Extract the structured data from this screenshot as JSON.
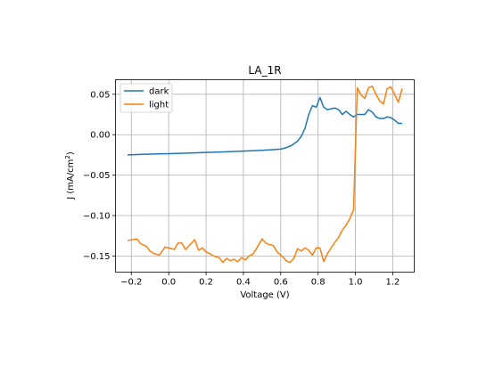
{
  "chart_data": {
    "type": "line",
    "title": "LA_1R",
    "xlabel": "Voltage (V)",
    "ylabel_main": "J (mA/cm",
    "ylabel_sup": "2",
    "ylabel_end": ")",
    "xlim": [
      -0.285,
      1.315
    ],
    "ylim": [
      -0.17,
      0.068
    ],
    "grid": true,
    "legend_position": "upper-left",
    "x_ticks": [
      -0.2,
      0.0,
      0.2,
      0.4,
      0.6,
      0.8,
      1.0,
      1.2
    ],
    "x_tick_labels": [
      "−0.2",
      "0.0",
      "0.2",
      "0.4",
      "0.6",
      "0.8",
      "1.0",
      "1.2"
    ],
    "y_ticks": [
      -0.15,
      -0.1,
      -0.05,
      0.0,
      0.05
    ],
    "y_tick_labels": [
      "−0.15",
      "−0.10",
      "−0.05",
      "0.00",
      "0.05"
    ],
    "series": [
      {
        "name": "dark",
        "color": "#1f77b4",
        "x": [
          -0.22,
          -0.1,
          0.0,
          0.1,
          0.2,
          0.3,
          0.4,
          0.5,
          0.55,
          0.6,
          0.63,
          0.66,
          0.69,
          0.71,
          0.73,
          0.75,
          0.77,
          0.79,
          0.81,
          0.83,
          0.85,
          0.87,
          0.89,
          0.91,
          0.93,
          0.95,
          0.97,
          0.99,
          1.01,
          1.03,
          1.05,
          1.07,
          1.09,
          1.11,
          1.13,
          1.15,
          1.17,
          1.19,
          1.21,
          1.23,
          1.25
        ],
        "y": [
          -0.025,
          -0.024,
          -0.0235,
          -0.0228,
          -0.022,
          -0.0212,
          -0.0203,
          -0.0193,
          -0.0186,
          -0.0178,
          -0.016,
          -0.013,
          -0.008,
          -0.002,
          0.008,
          0.025,
          0.036,
          0.034,
          0.046,
          0.034,
          0.031,
          0.032,
          0.033,
          0.031,
          0.025,
          0.029,
          0.025,
          0.022,
          0.025,
          0.025,
          0.025,
          0.031,
          0.028,
          0.022,
          0.02,
          0.02,
          0.022,
          0.021,
          0.018,
          0.014,
          0.014
        ]
      },
      {
        "name": "light",
        "color": "#ff7f0e",
        "x": [
          -0.22,
          -0.2,
          -0.17,
          -0.15,
          -0.12,
          -0.1,
          -0.08,
          -0.05,
          -0.02,
          0.0,
          0.03,
          0.05,
          0.07,
          0.09,
          0.11,
          0.14,
          0.16,
          0.18,
          0.2,
          0.22,
          0.24,
          0.27,
          0.29,
          0.31,
          0.33,
          0.35,
          0.37,
          0.39,
          0.41,
          0.43,
          0.45,
          0.47,
          0.5,
          0.52,
          0.54,
          0.56,
          0.58,
          0.61,
          0.63,
          0.65,
          0.67,
          0.69,
          0.71,
          0.73,
          0.75,
          0.77,
          0.79,
          0.81,
          0.83,
          0.85,
          0.87,
          0.89,
          0.91,
          0.93,
          0.95,
          0.97,
          0.99,
          1.01,
          1.03,
          1.05,
          1.07,
          1.09,
          1.11,
          1.13,
          1.15,
          1.17,
          1.19,
          1.21,
          1.23,
          1.25
        ],
        "y": [
          -0.131,
          -0.13,
          -0.129,
          -0.135,
          -0.138,
          -0.144,
          -0.147,
          -0.149,
          -0.139,
          -0.14,
          -0.142,
          -0.134,
          -0.134,
          -0.142,
          -0.137,
          -0.13,
          -0.143,
          -0.14,
          -0.145,
          -0.147,
          -0.15,
          -0.152,
          -0.158,
          -0.153,
          -0.156,
          -0.154,
          -0.157,
          -0.152,
          -0.155,
          -0.15,
          -0.148,
          -0.141,
          -0.129,
          -0.134,
          -0.136,
          -0.137,
          -0.145,
          -0.151,
          -0.156,
          -0.158,
          -0.153,
          -0.141,
          -0.144,
          -0.14,
          -0.143,
          -0.149,
          -0.14,
          -0.14,
          -0.157,
          -0.147,
          -0.14,
          -0.133,
          -0.127,
          -0.118,
          -0.112,
          -0.104,
          -0.093,
          0.058,
          0.049,
          0.045,
          0.058,
          0.06,
          0.05,
          0.042,
          0.038,
          0.057,
          0.059,
          0.05,
          0.04,
          0.057
        ]
      }
    ]
  }
}
